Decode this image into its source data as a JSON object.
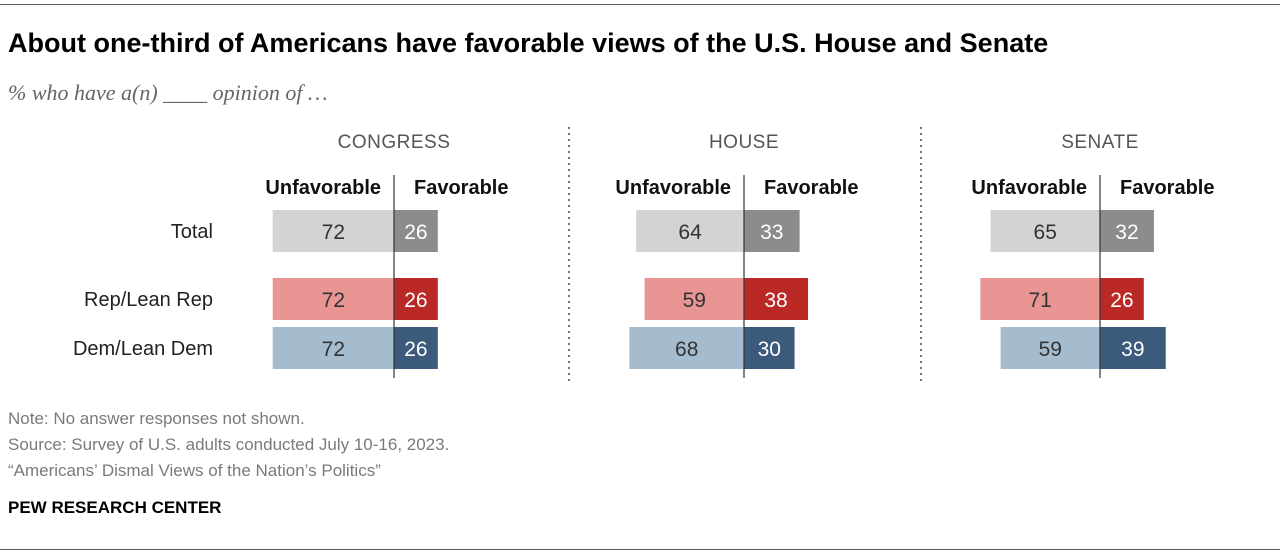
{
  "title": "About one-third of Americans have favorable views of the U.S. House and Senate",
  "subtitle": "% who have a(n) ____ opinion of …",
  "notes": {
    "note": "Note: No answer responses not shown.",
    "source": "Source: Survey of U.S. adults conducted July 10-16, 2023.",
    "report": "“Americans’ Dismal Views of the Nation’s Politics”"
  },
  "brand": "PEW RESEARCH CENTER",
  "colors": {
    "total_unfav": "#d3d3d3",
    "total_fav": "#8c8c8c",
    "rep_unfav": "#e89593",
    "rep_fav": "#bb2926",
    "dem_unfav": "#a5bccf",
    "dem_fav": "#3c5a7c"
  },
  "chart_data": {
    "type": "bar",
    "orientation": "diverging-horizontal",
    "column_headers": [
      "Unfavorable",
      "Favorable"
    ],
    "row_labels": [
      "Total",
      "Rep/Lean Rep",
      "Dem/Lean Dem"
    ],
    "panels": [
      {
        "name": "CONGRESS",
        "series": [
          {
            "name": "Unfavorable",
            "values": [
              72,
              72,
              72
            ]
          },
          {
            "name": "Favorable",
            "values": [
              26,
              26,
              26
            ]
          }
        ]
      },
      {
        "name": "HOUSE",
        "series": [
          {
            "name": "Unfavorable",
            "values": [
              64,
              59,
              68
            ]
          },
          {
            "name": "Favorable",
            "values": [
              33,
              38,
              30
            ]
          }
        ]
      },
      {
        "name": "SENATE",
        "series": [
          {
            "name": "Unfavorable",
            "values": [
              65,
              71,
              59
            ]
          },
          {
            "name": "Favorable",
            "values": [
              32,
              26,
              39
            ]
          }
        ]
      }
    ]
  }
}
